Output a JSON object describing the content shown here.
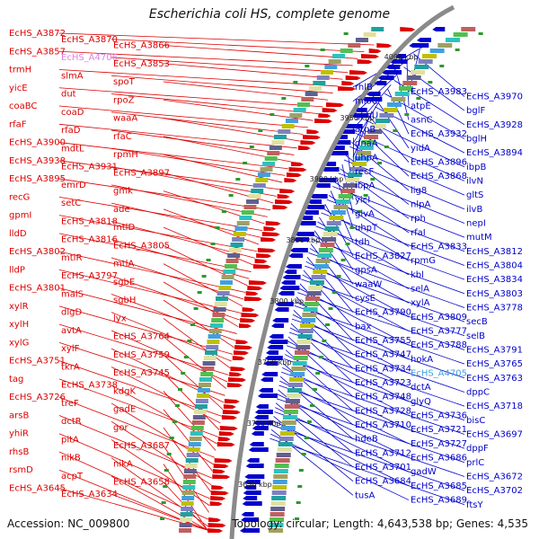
{
  "title": "Escherichia coli HS, complete genome",
  "footer": {
    "accession": "Accession: NC_009800",
    "topology": "Topology: circular; Length: 4,643,538 bp; Genes: 4,535"
  },
  "ticks": [
    "4000 kbp",
    "3950 kbp",
    "3900 kbp",
    "3850 kbp",
    "3800 kbp",
    "3750 kbp",
    "3700 kbp",
    "3650 kbp"
  ],
  "colors": {
    "forward": "#dd0000",
    "reverse": "#0000cc",
    "backbone": "#888888",
    "highlight": "#e080e0"
  },
  "left_labels": [
    "EcHS_A3872",
    "EcHS_A3870",
    "EcHS_A3866",
    "EcHS_A3857",
    "EcHS_A4706",
    "EcHS_A3853",
    "trmH",
    "slmA",
    "spoT",
    "yicE",
    "dut",
    "rpoZ",
    "coaBC",
    "coaD",
    "waaA",
    "rfaF",
    "rfaD",
    "rfaC",
    "EcHS_A3900",
    "mdtL",
    "rpmH",
    "EcHS_A3938",
    "EcHS_A3931",
    "EcHS_A3897",
    "EcHS_A3895",
    "emrD",
    "gmk",
    "recG",
    "setC",
    "ade",
    "gpmI",
    "EcHS_A3818",
    "mtlD",
    "lldD",
    "EcHS_A3816",
    "EcHS_A3805",
    "EcHS_A3802",
    "mtlR",
    "mtlA",
    "lldP",
    "EcHS_A3797",
    "sgbE",
    "EcHS_A3801",
    "malS",
    "sgbH",
    "xylR",
    "dlgD",
    "lyx",
    "xylH",
    "avtA",
    "EcHS_A3764",
    "xylG",
    "xylF",
    "EcHS_A3759",
    "EcHS_A3751",
    "tkrA",
    "EcHS_A3745",
    "tag",
    "EcHS_A3738",
    "kdgK",
    "EcHS_A3726",
    "treF",
    "gadE",
    "arsB",
    "dctR",
    "gor",
    "yhiR",
    "pitA",
    "EcHS_A3687",
    "rhsB",
    "nikB",
    "nikA",
    "rsmD",
    "acpT",
    "EcHS_A3658",
    "EcHS_A3645",
    "EcHS_A3634"
  ],
  "right_labels": [
    "rhlB",
    "EcHS_A3983",
    "EcHS_A3970",
    "mioC",
    "atpE",
    "bglF",
    "glmU",
    "asnC",
    "EcHS_A3928",
    "atpB",
    "EcHS_A3932",
    "bglH",
    "dnaA",
    "yidA",
    "EcHS_A3894",
    "uhpA",
    "EcHS_A3896",
    "ibpB",
    "recF",
    "EcHS_A3868",
    "ilvN",
    "ibpA",
    "lig8",
    "gltS",
    "yicI",
    "nlpA",
    "ilvB",
    "glvA",
    "rph",
    "nepI",
    "uhpT",
    "rfaI",
    "mutM",
    "tdh",
    "EcHS_A3833",
    "EcHS_A3812",
    "EcHS_A3827",
    "rpmG",
    "EcHS_A3804",
    "gpsA",
    "kbl",
    "EcHS_A3834",
    "waaW",
    "selA",
    "EcHS_A3803",
    "cysE",
    "xylA",
    "EcHS_A3778",
    "EcHS_A3790",
    "EcHS_A3809",
    "secB",
    "bax",
    "EcHS_A3777",
    "selB",
    "EcHS_A3755",
    "EcHS_A3788",
    "EcHS_A3791",
    "EcHS_A3747",
    "hokA",
    "EcHS_A3765",
    "EcHS_A3734",
    "EcHS_A4705",
    "EcHS_A3763",
    "EcHS_A3723",
    "dctA",
    "dppC",
    "EcHS_A3748",
    "glyQ",
    "EcHS_A3718",
    "EcHS_A3728",
    "EcHS_A3736",
    "bisC",
    "EcHS_A3710",
    "EcHS_A3721",
    "EcHS_A3697",
    "hdeB",
    "EcHS_A3727",
    "dppF",
    "EcHS_A3712",
    "EcHS_A3686",
    "prlC",
    "EcHS_A3701",
    "gadW",
    "EcHS_A3672",
    "EcHS_A3684",
    "EcHS_A3685",
    "EcHS_A3702",
    "tusA",
    "EcHS_A3689",
    "ftsY"
  ]
}
